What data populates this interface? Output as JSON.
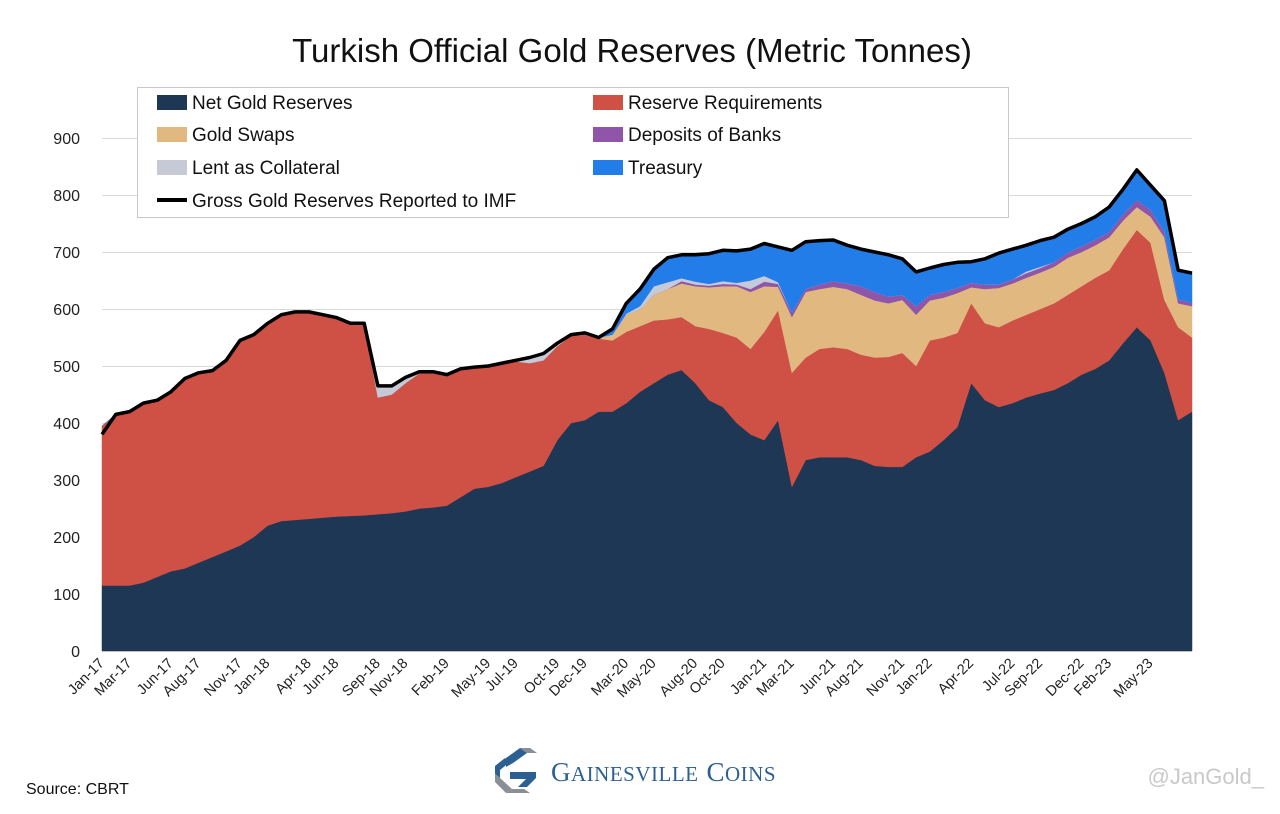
{
  "chart_data": {
    "type": "area",
    "stacked": true,
    "title": "Turkish Official Gold Reserves (Metric Tonnes)",
    "xlabel": "",
    "ylabel": "",
    "ylim": [
      0,
      900
    ],
    "yticks": [
      0,
      100,
      200,
      300,
      400,
      500,
      600,
      700,
      800,
      900
    ],
    "grid": "horizontal",
    "legend_position": "top-left (inside)",
    "x": [
      "Jan-17",
      "Feb-17",
      "Mar-17",
      "Apr-17",
      "May-17",
      "Jun-17",
      "Jul-17",
      "Aug-17",
      "Sep-17",
      "Oct-17",
      "Nov-17",
      "Dec-17",
      "Jan-18",
      "Feb-18",
      "Mar-18",
      "Apr-18",
      "May-18",
      "Jun-18",
      "Jul-18",
      "Aug-18",
      "Sep-18",
      "Oct-18",
      "Nov-18",
      "Dec-18",
      "Jan-19",
      "Feb-19",
      "Mar-19",
      "Apr-19",
      "May-19",
      "Jun-19",
      "Jul-19",
      "Aug-19",
      "Sep-19",
      "Oct-19",
      "Nov-19",
      "Dec-19",
      "Jan-20",
      "Feb-20",
      "Mar-20",
      "Apr-20",
      "May-20",
      "Jun-20",
      "Jul-20",
      "Aug-20",
      "Sep-20",
      "Oct-20",
      "Nov-20",
      "Dec-20",
      "Jan-21",
      "Feb-21",
      "Mar-21",
      "Apr-21",
      "May-21",
      "Jun-21",
      "Jul-21",
      "Aug-21",
      "Sep-21",
      "Oct-21",
      "Nov-21",
      "Dec-21",
      "Jan-22",
      "Feb-22",
      "Mar-22",
      "Apr-22",
      "May-22",
      "Jun-22",
      "Jul-22",
      "Aug-22",
      "Sep-22",
      "Oct-22",
      "Nov-22",
      "Dec-22",
      "Jan-23",
      "Feb-23",
      "Mar-23",
      "Apr-23",
      "May-23",
      "Jun-23",
      "Jul-23",
      "Aug-23"
    ],
    "tick_labels": [
      "Jan-17",
      "Mar-17",
      "Jun-17",
      "Aug-17",
      "Nov-17",
      "Jan-18",
      "Apr-18",
      "Jun-18",
      "Sep-18",
      "Nov-18",
      "Feb-19",
      "May-19",
      "Jul-19",
      "Oct-19",
      "Dec-19",
      "Mar-20",
      "May-20",
      "Aug-20",
      "Oct-20",
      "Jan-21",
      "Mar-21",
      "Jun-21",
      "Aug-21",
      "Nov-21",
      "Jan-22",
      "Apr-22",
      "Jul-22",
      "Sep-22",
      "Dec-22",
      "Feb-23",
      "May-23"
    ],
    "series": [
      {
        "name": "Net Gold Reserves",
        "color": "#1d3755",
        "values": [
          115,
          115,
          115,
          120,
          130,
          140,
          145,
          155,
          165,
          175,
          185,
          200,
          220,
          228,
          230,
          232,
          234,
          236,
          237,
          238,
          240,
          242,
          245,
          250,
          252,
          255,
          270,
          285,
          288,
          295,
          305,
          315,
          325,
          370,
          400,
          405,
          420,
          420,
          435,
          455,
          470,
          485,
          493,
          470,
          440,
          428,
          400,
          380,
          370,
          405,
          288,
          335,
          340,
          340,
          340,
          335,
          325,
          323,
          323,
          340,
          350,
          370,
          393,
          470,
          440,
          428,
          435,
          445,
          452,
          458,
          470,
          485,
          495,
          510,
          540,
          568,
          545,
          488,
          405,
          420
        ]
      },
      {
        "name": "Reserve Requirements",
        "color": "#cf5044",
        "values": [
          280,
          300,
          305,
          315,
          310,
          315,
          333,
          333,
          327,
          335,
          360,
          355,
          355,
          362,
          365,
          363,
          356,
          349,
          338,
          337,
          205,
          208,
          225,
          237,
          236,
          228,
          223,
          211,
          210,
          208,
          203,
          190,
          185,
          165,
          153,
          150,
          128,
          125,
          125,
          115,
          110,
          97,
          93,
          100,
          125,
          130,
          150,
          150,
          190,
          193,
          200,
          180,
          190,
          193,
          190,
          185,
          190,
          193,
          200,
          160,
          195,
          180,
          165,
          140,
          135,
          140,
          145,
          145,
          148,
          152,
          155,
          155,
          160,
          158,
          165,
          171,
          171,
          128,
          163,
          130
        ]
      },
      {
        "name": "Gold Swaps",
        "color": "#e2b881",
        "values": [
          0,
          0,
          0,
          0,
          0,
          0,
          0,
          0,
          0,
          0,
          0,
          0,
          0,
          0,
          0,
          0,
          0,
          0,
          0,
          0,
          0,
          0,
          0,
          0,
          0,
          0,
          0,
          0,
          0,
          0,
          0,
          0,
          0,
          0,
          0,
          0,
          0,
          10,
          30,
          30,
          45,
          53,
          59,
          70,
          73,
          82,
          90,
          100,
          80,
          41,
          98,
          115,
          105,
          106,
          105,
          105,
          100,
          94,
          93,
          90,
          70,
          70,
          70,
          28,
          60,
          69,
          65,
          65,
          64,
          64,
          65,
          60,
          57,
          58,
          50,
          40,
          46,
          110,
          42,
          55
        ]
      },
      {
        "name": "Deposits of Banks",
        "color": "#8e55a8",
        "values": [
          0,
          0,
          0,
          0,
          0,
          0,
          0,
          0,
          0,
          0,
          0,
          0,
          0,
          0,
          0,
          0,
          0,
          0,
          0,
          0,
          0,
          0,
          0,
          0,
          0,
          0,
          0,
          0,
          0,
          0,
          0,
          0,
          0,
          0,
          0,
          0,
          0,
          0,
          0,
          0,
          0,
          0,
          4,
          3,
          3,
          4,
          3,
          5,
          8,
          5,
          8,
          5,
          8,
          10,
          10,
          15,
          15,
          12,
          9,
          15,
          10,
          10,
          9,
          8,
          8,
          6,
          7,
          8,
          8,
          8,
          9,
          10,
          10,
          9,
          11,
          12,
          12,
          10,
          7,
          6
        ]
      },
      {
        "name": "Lent as Collateral",
        "color": "#c5cad6",
        "values": [
          0,
          0,
          0,
          0,
          0,
          0,
          0,
          0,
          0,
          0,
          0,
          0,
          0,
          0,
          0,
          0,
          0,
          0,
          0,
          0,
          20,
          15,
          10,
          3,
          2,
          2,
          2,
          2,
          2,
          2,
          2,
          10,
          12,
          5,
          2,
          0,
          2,
          0,
          2,
          5,
          15,
          12,
          5,
          5,
          3,
          5,
          3,
          15,
          10,
          3,
          0,
          0,
          0,
          0,
          0,
          0,
          0,
          0,
          0,
          0,
          0,
          0,
          0,
          0,
          0,
          0,
          0,
          3,
          2,
          0,
          0,
          0,
          0,
          0,
          0,
          0,
          0,
          0,
          0,
          0
        ]
      },
      {
        "name": "Treasury",
        "color": "#237de8",
        "values": [
          0,
          0,
          0,
          0,
          0,
          0,
          0,
          0,
          0,
          0,
          0,
          0,
          0,
          0,
          0,
          0,
          0,
          0,
          0,
          0,
          0,
          0,
          0,
          0,
          0,
          0,
          0,
          0,
          0,
          0,
          0,
          0,
          0,
          0,
          0,
          3,
          0,
          10,
          18,
          30,
          30,
          43,
          41,
          47,
          53,
          54,
          56,
          55,
          57,
          62,
          109,
          83,
          77,
          72,
          67,
          65,
          70,
          73,
          63,
          60,
          47,
          48,
          45,
          37,
          45,
          55,
          53,
          46,
          46,
          44,
          41,
          40,
          40,
          44,
          44,
          53,
          43,
          54,
          51,
          52
        ]
      }
    ],
    "line": {
      "name": "Gross Gold Reserves Reported to IMF",
      "color": "#000000",
      "values": [
        380,
        415,
        420,
        435,
        440,
        455,
        478,
        488,
        492,
        510,
        545,
        555,
        575,
        590,
        595,
        595,
        590,
        585,
        575,
        575,
        465,
        465,
        480,
        490,
        490,
        485,
        495,
        498,
        500,
        505,
        510,
        515,
        522,
        540,
        555,
        558,
        550,
        565,
        610,
        635,
        670,
        690,
        695,
        695,
        697,
        703,
        702,
        705,
        715,
        709,
        703,
        718,
        720,
        721,
        712,
        705,
        700,
        695,
        688,
        665,
        672,
        678,
        682,
        683,
        688,
        698,
        705,
        712,
        720,
        726,
        740,
        750,
        762,
        779,
        810,
        844,
        817,
        790,
        668,
        663
      ]
    }
  },
  "footer": {
    "source": "Source: CBRT",
    "brand_first_initial": "G",
    "brand_first_rest": "AINESVILLE",
    "brand_second_initial": "C",
    "brand_second_rest": "OINS",
    "brand_full": "Gainesville Coins",
    "handle": "@JanGold_"
  }
}
